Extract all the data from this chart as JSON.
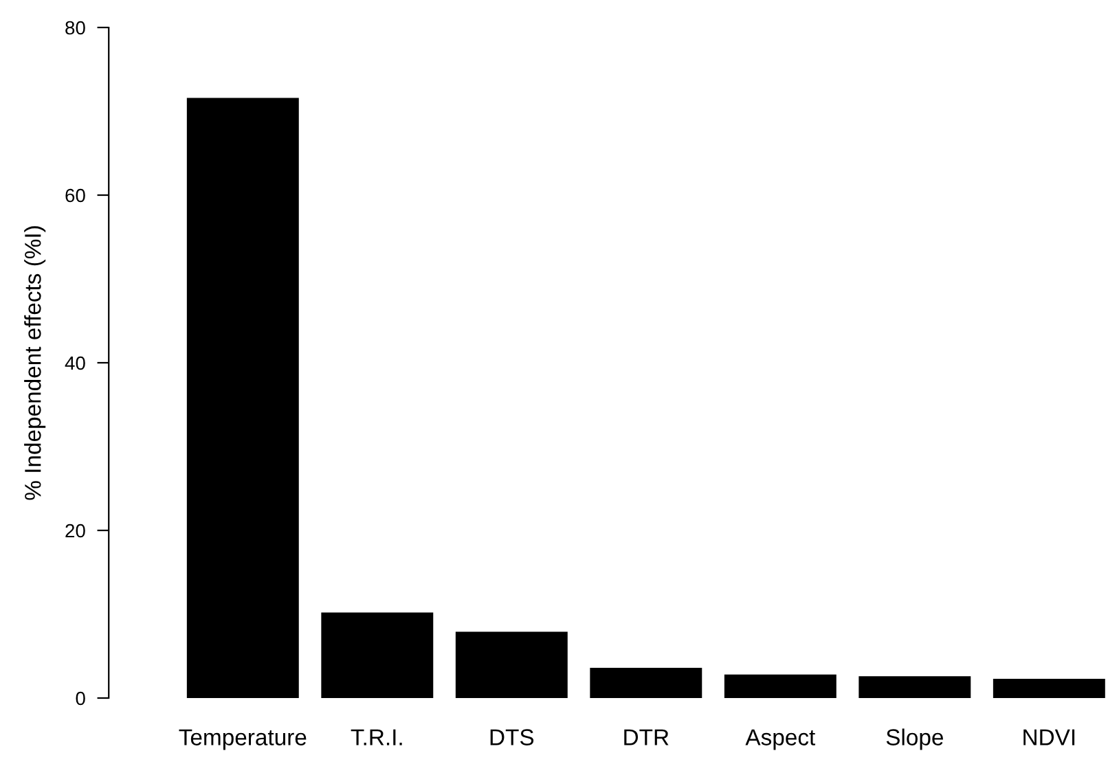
{
  "chart_data": {
    "type": "bar",
    "ylabel": "% Independent effects (%I)",
    "categories": [
      "Temperature",
      "T.R.I.",
      "DTS",
      "DTR",
      "Aspect",
      "Slope",
      "NDVI"
    ],
    "values": [
      71.6,
      10.2,
      7.9,
      3.6,
      2.8,
      2.6,
      2.3
    ],
    "color": "#000000",
    "ylim": [
      0,
      80
    ],
    "yticks": [
      0,
      20,
      40,
      60,
      80
    ],
    "grid": false,
    "legend": false
  }
}
